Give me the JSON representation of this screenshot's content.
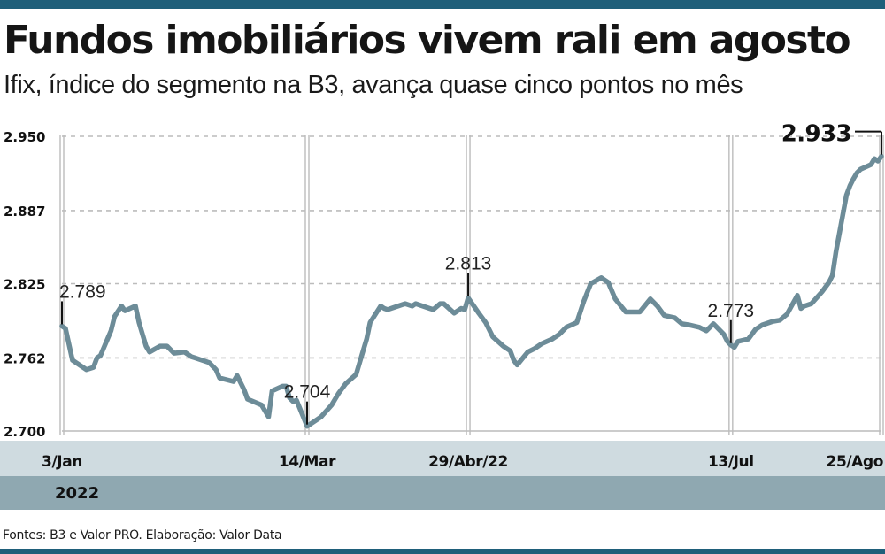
{
  "header": {
    "title": "Fundos imobiliários vivem rali em agosto",
    "subtitle": "Ifix, índice do segmento na B3, avança quase cinco pontos no mês"
  },
  "footer": {
    "source": "Fontes: B3 e Valor PRO. Elaboração: Valor Data"
  },
  "colors": {
    "rule": "#1f5f7a",
    "line": "#6d8c98",
    "band_light": "#cfdbe0",
    "band_dark": "#8fa8b1",
    "grid": "#bcbcbc"
  },
  "chart_data": {
    "type": "line",
    "title": "Fundos imobiliários vivem rali em agosto",
    "subtitle": "Ifix, índice do segmento na B3, avança quase cinco pontos no mês",
    "xlabel": "",
    "ylabel": "",
    "year_label": "2022",
    "ylim": [
      2700,
      2950
    ],
    "y_ticks": [
      2700,
      2762,
      2825,
      2887,
      2950
    ],
    "y_tick_labels": [
      "2.700",
      "2.762",
      "2.825",
      "2.887",
      "2.950"
    ],
    "x_ticks": [
      {
        "date": "2022-01-03",
        "label": "3/Jan"
      },
      {
        "date": "2022-03-14",
        "label": "14/Mar"
      },
      {
        "date": "2022-04-29",
        "label": "29/Abr/22"
      },
      {
        "date": "2022-07-13",
        "label": "13/Jul"
      },
      {
        "date": "2022-08-25",
        "label": "25/Ago"
      }
    ],
    "grid": true,
    "annotations": [
      {
        "date": "2022-01-03",
        "value": 2789,
        "label": "2.789"
      },
      {
        "date": "2022-03-14",
        "value": 2704,
        "label": "2.704"
      },
      {
        "date": "2022-04-29",
        "value": 2813,
        "label": "2.813"
      },
      {
        "date": "2022-07-13",
        "value": 2773,
        "label": "2.773"
      },
      {
        "date": "2022-08-25",
        "value": 2933,
        "label": "2.933"
      }
    ],
    "series": [
      {
        "x": [
          "2022-01-03",
          "2022-01-04",
          "2022-01-06",
          "2022-01-07",
          "2022-01-10",
          "2022-01-12",
          "2022-01-13",
          "2022-01-14",
          "2022-01-17",
          "2022-01-18",
          "2022-01-20",
          "2022-01-21",
          "2022-01-24",
          "2022-01-25",
          "2022-01-27",
          "2022-01-28",
          "2022-01-31",
          "2022-02-02",
          "2022-02-04",
          "2022-02-07",
          "2022-02-09",
          "2022-02-10",
          "2022-02-14",
          "2022-02-16",
          "2022-02-17",
          "2022-02-21",
          "2022-02-22",
          "2022-02-24",
          "2022-02-25",
          "2022-03-01",
          "2022-03-03",
          "2022-03-04",
          "2022-03-07",
          "2022-03-08",
          "2022-03-09",
          "2022-03-10",
          "2022-03-11",
          "2022-03-14",
          "2022-03-15",
          "2022-03-17",
          "2022-03-18",
          "2022-03-21",
          "2022-03-23",
          "2022-03-24",
          "2022-03-25",
          "2022-03-28",
          "2022-03-30",
          "2022-03-31",
          "2022-04-01",
          "2022-04-04",
          "2022-04-05",
          "2022-04-06",
          "2022-04-08",
          "2022-04-11",
          "2022-04-13",
          "2022-04-14",
          "2022-04-18",
          "2022-04-19",
          "2022-04-21",
          "2022-04-22",
          "2022-04-25",
          "2022-04-27",
          "2022-04-28",
          "2022-04-29",
          "2022-05-02",
          "2022-05-04",
          "2022-05-06",
          "2022-05-09",
          "2022-05-11",
          "2022-05-12",
          "2022-05-13",
          "2022-05-16",
          "2022-05-18",
          "2022-05-20",
          "2022-05-23",
          "2022-05-25",
          "2022-05-27",
          "2022-05-30",
          "2022-06-01",
          "2022-06-03",
          "2022-06-06",
          "2022-06-08",
          "2022-06-10",
          "2022-06-13",
          "2022-06-15",
          "2022-06-17",
          "2022-06-20",
          "2022-06-22",
          "2022-06-24",
          "2022-06-27",
          "2022-06-29",
          "2022-07-01",
          "2022-07-04",
          "2022-07-06",
          "2022-07-08",
          "2022-07-11",
          "2022-07-12",
          "2022-07-13",
          "2022-07-14",
          "2022-07-15",
          "2022-07-18",
          "2022-07-20",
          "2022-07-22",
          "2022-07-25",
          "2022-07-27",
          "2022-07-29",
          "2022-08-01",
          "2022-08-02",
          "2022-08-03",
          "2022-08-05",
          "2022-08-08",
          "2022-08-10",
          "2022-08-11",
          "2022-08-12",
          "2022-08-15",
          "2022-08-16",
          "2022-08-17",
          "2022-08-18",
          "2022-08-19",
          "2022-08-22",
          "2022-08-23",
          "2022-08-24",
          "2022-08-25"
        ],
        "values": [
          2789,
          2787,
          2760,
          2758,
          2752,
          2754,
          2762,
          2764,
          2785,
          2797,
          2806,
          2802,
          2806,
          2792,
          2772,
          2767,
          2772,
          2772,
          2766,
          2767,
          2763,
          2762,
          2758,
          2752,
          2745,
          2742,
          2747,
          2735,
          2727,
          2722,
          2712,
          2734,
          2738,
          2738,
          2728,
          2725,
          2726,
          2704,
          2706,
          2710,
          2712,
          2722,
          2732,
          2736,
          2740,
          2748,
          2768,
          2778,
          2792,
          2806,
          2804,
          2803,
          2805,
          2808,
          2806,
          2808,
          2804,
          2803,
          2808,
          2808,
          2800,
          2804,
          2803,
          2813,
          2800,
          2792,
          2780,
          2772,
          2768,
          2760,
          2756,
          2767,
          2770,
          2774,
          2778,
          2782,
          2788,
          2792,
          2810,
          2825,
          2830,
          2826,
          2812,
          2801,
          2801,
          2801,
          2812,
          2806,
          2798,
          2796,
          2791,
          2790,
          2788,
          2785,
          2791,
          2782,
          2776,
          2773,
          2771,
          2776,
          2778,
          2786,
          2790,
          2793,
          2794,
          2799,
          2815,
          2804,
          2806,
          2808,
          2818,
          2826,
          2832,
          2852,
          2900,
          2908,
          2914,
          2919,
          2922,
          2926,
          2931,
          2929,
          2933
        ]
      }
    ]
  }
}
